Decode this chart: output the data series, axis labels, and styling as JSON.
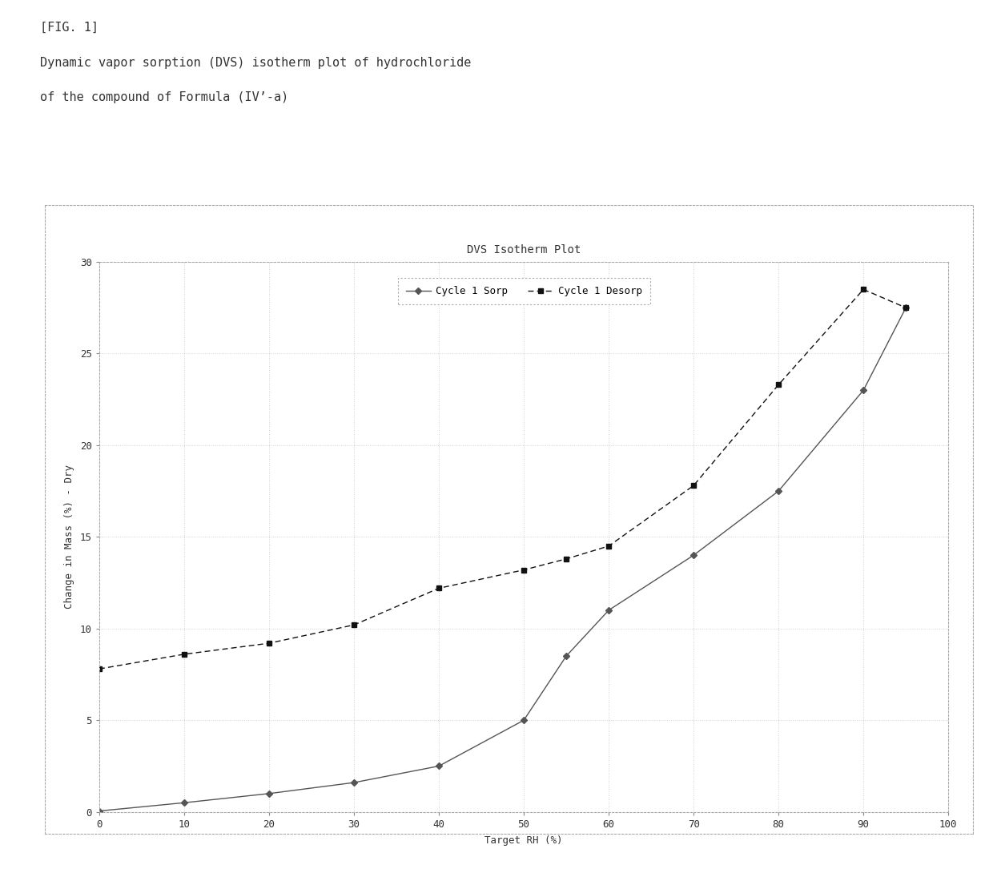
{
  "title": "DVS Isotherm Plot",
  "xlabel": "Target RH (%)",
  "ylabel": "Change in Mass (%) - Dry",
  "fig_label": "[FIG. 1]",
  "caption_line1": "Dynamic vapor sorption (DVS) isotherm plot of hydrochloride",
  "caption_line2": "of the compound of Formula (IV’-a)",
  "xlim": [
    0,
    100
  ],
  "ylim": [
    0,
    30
  ],
  "xticks": [
    0,
    10,
    20,
    30,
    40,
    50,
    60,
    70,
    80,
    90,
    100
  ],
  "yticks": [
    0,
    5,
    10,
    15,
    20,
    25,
    30
  ],
  "sorp_x": [
    0,
    10,
    20,
    30,
    40,
    50,
    55,
    60,
    70,
    80,
    90,
    95
  ],
  "sorp_y": [
    0.05,
    0.5,
    1.0,
    1.6,
    2.5,
    5.0,
    8.5,
    11.0,
    14.0,
    17.5,
    23.0,
    27.5
  ],
  "desorp_x": [
    0,
    10,
    20,
    30,
    40,
    50,
    55,
    60,
    70,
    80,
    90,
    95
  ],
  "desorp_y": [
    7.8,
    8.6,
    9.2,
    10.2,
    12.2,
    13.2,
    13.8,
    14.5,
    17.8,
    23.3,
    28.5,
    27.5
  ],
  "sorp_color": "#555555",
  "desorp_color": "#111111",
  "bg_color": "#ffffff",
  "plot_bg_color": "#ffffff",
  "legend_label_sorp": "Cycle 1 Sorp",
  "legend_label_desorp": "Cycle 1 Desorp",
  "grid_color": "#cccccc",
  "border_color": "#888888",
  "text_color": "#333333"
}
